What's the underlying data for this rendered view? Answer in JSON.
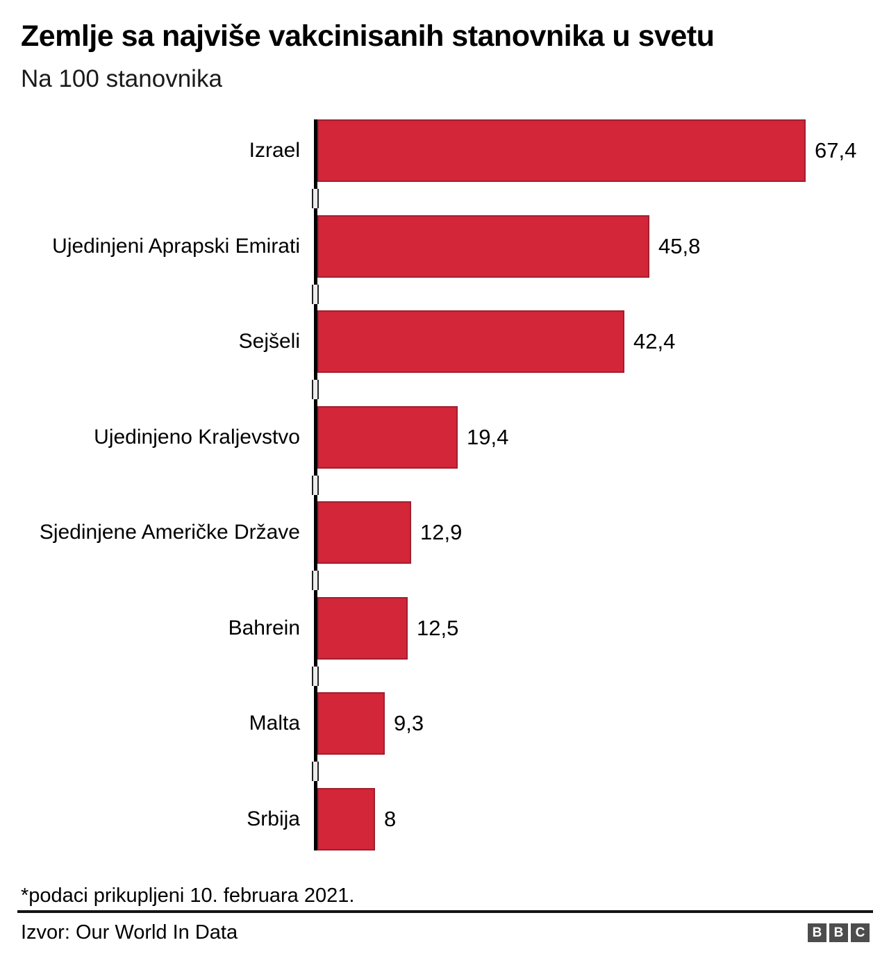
{
  "header": {
    "title": "Zemlje sa najviše vakcinisanih stanovnika u svetu",
    "subtitle": "Na 100 stanovnika"
  },
  "chart_data": {
    "type": "bar",
    "orientation": "horizontal",
    "title": "Zemlje sa najviše vakcinisanih stanovnika u svetu",
    "subtitle": "Na 100 stanovnika",
    "categories": [
      "Izrael",
      "Ujedinjeni Aprapski Emirati",
      "Sejšeli",
      "Ujedinjeno Kraljevstvo",
      "Sjedinjene Američke Države",
      "Bahrein",
      "Malta",
      "Srbija"
    ],
    "values": [
      67.4,
      45.8,
      42.4,
      19.4,
      12.9,
      12.5,
      9.3,
      8
    ],
    "value_labels": [
      "67,4",
      "45,8",
      "42,4",
      "19,4",
      "12,9",
      "12,5",
      "9,3",
      "8"
    ],
    "xlim": [
      0,
      77
    ],
    "grid": false,
    "legend": false,
    "bar_color": "#d32638",
    "bar_border_color": "#a01f30",
    "axis_color": "#000000"
  },
  "footer": {
    "note": "*podaci prikupljeni 10. februara 2021.",
    "source": "Izvor: Our World In Data",
    "logo": [
      "B",
      "B",
      "C"
    ]
  }
}
